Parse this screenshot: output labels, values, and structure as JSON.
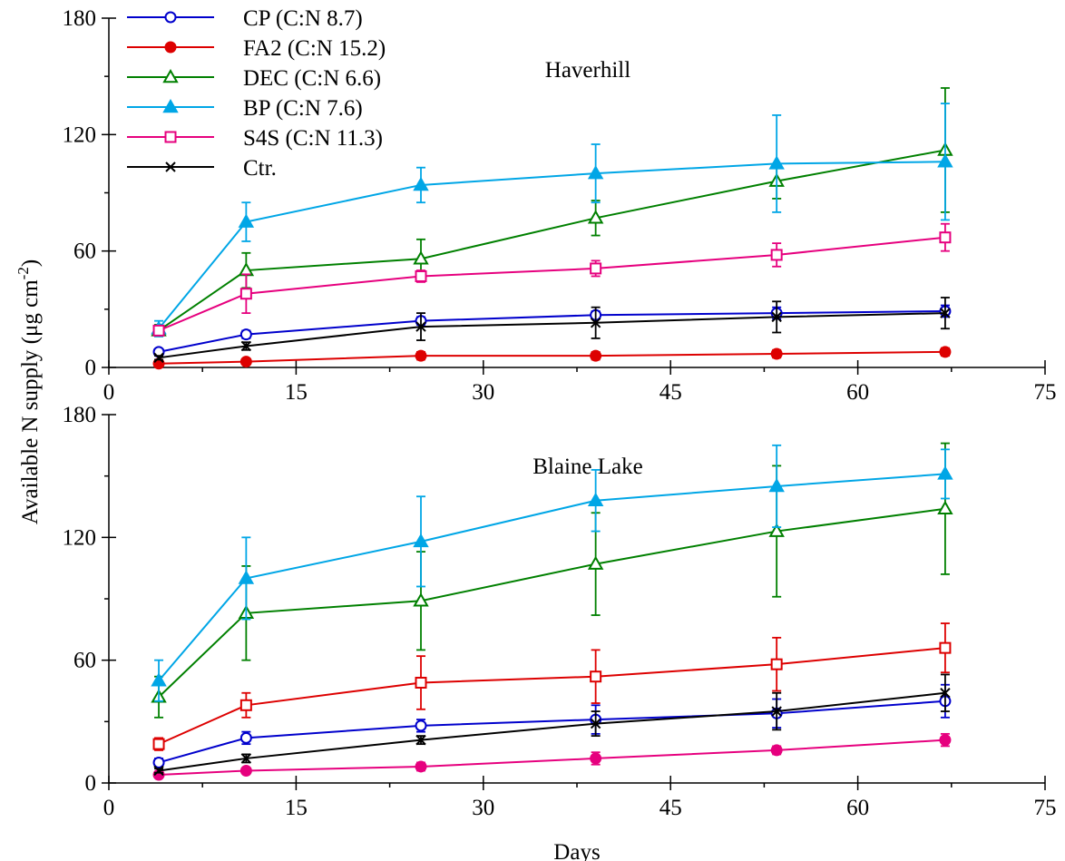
{
  "chart_data": [
    {
      "type": "line",
      "title": "Haverhill",
      "xlabel": "",
      "ylabel": "",
      "xlim": [
        0,
        75
      ],
      "ylim": [
        0,
        180
      ],
      "xticks": [
        "0",
        "15",
        "30",
        "45",
        "60",
        "75"
      ],
      "yticks": [
        "0",
        "60",
        "120",
        "180"
      ],
      "x": [
        4,
        11,
        25,
        39,
        53.5,
        67
      ],
      "series": [
        {
          "name": "CP (C:N 8.7)",
          "color": "#0000cc",
          "marker": "circle-open",
          "values": [
            8,
            17,
            24,
            27,
            28,
            29
          ],
          "errors": [
            1,
            2,
            2,
            2,
            3,
            3
          ]
        },
        {
          "name": "FA2 (C:N 15.2)",
          "color": "#dd0000",
          "marker": "circle-filled",
          "values": [
            2,
            3,
            6,
            6,
            7,
            8
          ],
          "errors": [
            1,
            1,
            2,
            2,
            2,
            2
          ]
        },
        {
          "name": "DEC (C:N 6.6)",
          "color": "#008000",
          "marker": "triangle-open",
          "values": [
            19,
            50,
            56,
            77,
            96,
            112
          ],
          "errors": [
            3,
            9,
            10,
            9,
            9,
            32
          ]
        },
        {
          "name": "BP (C:N 7.6)",
          "color": "#00a6e6",
          "marker": "triangle-filled",
          "values": [
            20,
            75,
            94,
            100,
            105,
            106
          ],
          "errors": [
            4,
            10,
            9,
            15,
            25,
            30
          ]
        },
        {
          "name": "S4S (C:N 11.3)",
          "color": "#e6007e",
          "marker": "square-open",
          "values": [
            19,
            38,
            47,
            51,
            58,
            67
          ],
          "errors": [
            2,
            10,
            3,
            4,
            6,
            7
          ]
        },
        {
          "name": "Ctr.",
          "color": "#000000",
          "marker": "x",
          "values": [
            5,
            11,
            21,
            23,
            26,
            28
          ],
          "errors": [
            1,
            2,
            7,
            8,
            8,
            8
          ]
        }
      ],
      "legend": "top-left"
    },
    {
      "type": "line",
      "title": "Blaine Lake",
      "xlabel": "Days",
      "ylabel": "",
      "xlim": [
        0,
        75
      ],
      "ylim": [
        0,
        180
      ],
      "xticks": [
        "0",
        "15",
        "30",
        "45",
        "60",
        "75"
      ],
      "yticks": [
        "0",
        "60",
        "120",
        "180"
      ],
      "x": [
        4,
        11,
        25,
        39,
        53.5,
        67
      ],
      "series": [
        {
          "color": "#0000cc",
          "marker": "circle-open",
          "values": [
            10,
            22,
            28,
            31,
            34,
            40
          ],
          "errors": [
            2,
            3,
            3,
            7,
            7,
            8
          ]
        },
        {
          "color": "#e6007e",
          "marker": "circle-filled",
          "values": [
            4,
            6,
            8,
            12,
            16,
            21
          ],
          "errors": [
            1,
            1,
            2,
            3,
            2,
            3
          ]
        },
        {
          "color": "#008000",
          "marker": "triangle-open",
          "values": [
            42,
            83,
            89,
            107,
            123,
            134
          ],
          "errors": [
            10,
            23,
            24,
            25,
            32,
            32
          ]
        },
        {
          "color": "#00a6e6",
          "marker": "triangle-filled",
          "values": [
            50,
            100,
            118,
            138,
            145,
            151
          ],
          "errors": [
            10,
            20,
            22,
            15,
            20,
            12
          ]
        },
        {
          "color": "#dd0000",
          "marker": "square-open",
          "values": [
            19,
            38,
            49,
            52,
            58,
            66
          ],
          "errors": [
            3,
            6,
            13,
            13,
            13,
            12
          ]
        },
        {
          "color": "#000000",
          "marker": "x",
          "values": [
            6,
            12,
            21,
            29,
            35,
            44
          ],
          "errors": [
            1,
            2,
            2,
            6,
            9,
            9
          ]
        }
      ]
    }
  ],
  "ylabel_shared": "Available N supply (μg cm",
  "ylabel_superscript": "-2",
  "ylabel_close": ")"
}
